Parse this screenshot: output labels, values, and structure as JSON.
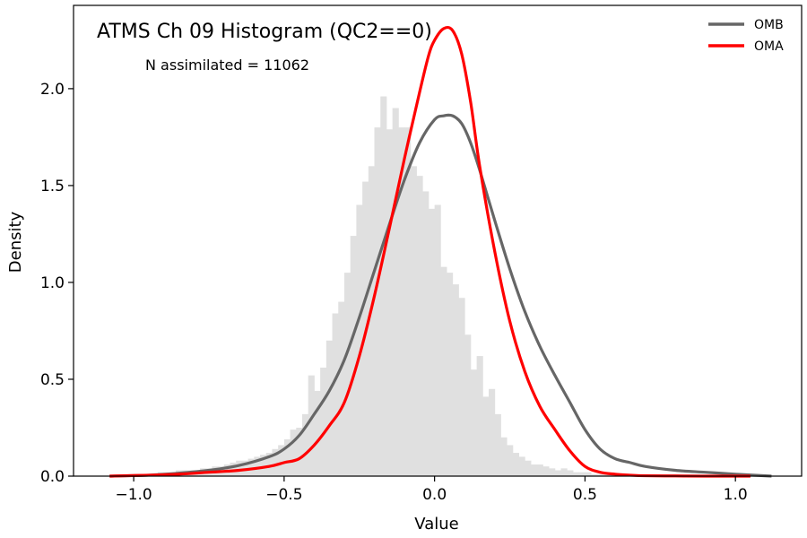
{
  "chart_data": {
    "type": "line",
    "title": "ATMS Ch 09 Histogram (QC2==0)",
    "annotation": "N assimilated = 11062",
    "xlabel": "Value",
    "ylabel": "Density",
    "xlim": [
      -1.2,
      1.22
    ],
    "ylim": [
      0,
      2.43
    ],
    "xticks": [
      -1.0,
      -0.5,
      0.0,
      0.5,
      1.0
    ],
    "xtick_labels": [
      "−1.0",
      "−0.5",
      "0.0",
      "0.5",
      "1.0"
    ],
    "yticks": [
      0.0,
      0.5,
      1.0,
      1.5,
      2.0
    ],
    "ytick_labels": [
      "0.0",
      "0.5",
      "1.0",
      "1.5",
      "2.0"
    ],
    "legend_position": "top-right",
    "colors": {
      "omb": "#666666",
      "oma": "#ff0000",
      "hist": "#e0e0e0"
    },
    "histogram": {
      "bin_width": 0.02,
      "bin_start": -1.1,
      "values": [
        0.0,
        0.0,
        0.0,
        0.0,
        0.0,
        0.01,
        0.01,
        0.01,
        0.01,
        0.02,
        0.02,
        0.02,
        0.03,
        0.03,
        0.03,
        0.03,
        0.04,
        0.04,
        0.05,
        0.05,
        0.06,
        0.07,
        0.08,
        0.08,
        0.09,
        0.1,
        0.11,
        0.12,
        0.14,
        0.16,
        0.19,
        0.24,
        0.25,
        0.32,
        0.52,
        0.44,
        0.56,
        0.7,
        0.84,
        0.9,
        1.05,
        1.24,
        1.4,
        1.52,
        1.6,
        1.8,
        1.96,
        1.79,
        1.9,
        1.8,
        1.8,
        1.6,
        1.55,
        1.47,
        1.38,
        1.4,
        1.08,
        1.05,
        0.99,
        0.92,
        0.73,
        0.55,
        0.62,
        0.41,
        0.45,
        0.32,
        0.2,
        0.16,
        0.12,
        0.1,
        0.08,
        0.06,
        0.06,
        0.05,
        0.04,
        0.03,
        0.04,
        0.03,
        0.02,
        0.02,
        0.02,
        0.01,
        0.01,
        0.01,
        0.01,
        0.01,
        0.01,
        0.0,
        0.0,
        0.0,
        0.0,
        0.0,
        0.0,
        0.0,
        0.0,
        0.0,
        0.0,
        0.0,
        0.0,
        0.0,
        0.0,
        0.0,
        0.0,
        0.0,
        0.0,
        0.0,
        0.0,
        0.0,
        0.0,
        0.0,
        0.0
      ]
    },
    "series": [
      {
        "name": "OMB",
        "x": [
          -1.08,
          -0.95,
          -0.85,
          -0.75,
          -0.65,
          -0.55,
          -0.5,
          -0.45,
          -0.4,
          -0.35,
          -0.3,
          -0.25,
          -0.2,
          -0.15,
          -0.1,
          -0.05,
          0.0,
          0.03,
          0.06,
          0.09,
          0.12,
          0.15,
          0.2,
          0.25,
          0.3,
          0.35,
          0.4,
          0.45,
          0.5,
          0.55,
          0.6,
          0.65,
          0.7,
          0.8,
          0.9,
          1.0,
          1.12
        ],
        "y": [
          0.0,
          0.005,
          0.015,
          0.03,
          0.055,
          0.1,
          0.14,
          0.21,
          0.32,
          0.44,
          0.6,
          0.82,
          1.06,
          1.3,
          1.53,
          1.72,
          1.84,
          1.86,
          1.86,
          1.82,
          1.72,
          1.58,
          1.32,
          1.07,
          0.85,
          0.67,
          0.52,
          0.38,
          0.24,
          0.14,
          0.09,
          0.07,
          0.05,
          0.03,
          0.02,
          0.01,
          0.0
        ]
      },
      {
        "name": "OMA",
        "x": [
          -1.08,
          -0.95,
          -0.85,
          -0.75,
          -0.65,
          -0.55,
          -0.5,
          -0.45,
          -0.4,
          -0.35,
          -0.3,
          -0.25,
          -0.2,
          -0.15,
          -0.1,
          -0.05,
          -0.02,
          0.0,
          0.03,
          0.06,
          0.09,
          0.12,
          0.15,
          0.2,
          0.25,
          0.3,
          0.35,
          0.4,
          0.45,
          0.5,
          0.55,
          0.6,
          0.65,
          0.7,
          0.8,
          0.9,
          1.0,
          1.05
        ],
        "y": [
          0.0,
          0.005,
          0.01,
          0.02,
          0.03,
          0.05,
          0.07,
          0.09,
          0.16,
          0.26,
          0.38,
          0.62,
          0.93,
          1.28,
          1.64,
          1.98,
          2.17,
          2.25,
          2.31,
          2.3,
          2.18,
          1.93,
          1.6,
          1.16,
          0.8,
          0.54,
          0.36,
          0.24,
          0.13,
          0.05,
          0.02,
          0.01,
          0.005,
          0.002,
          0.001,
          0.0,
          0.0,
          0.0
        ]
      }
    ]
  }
}
